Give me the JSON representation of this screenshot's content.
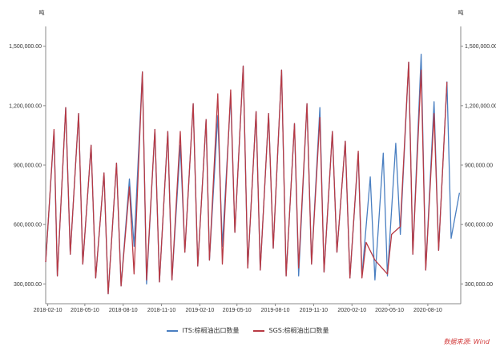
{
  "chart_data": {
    "type": "line",
    "unit_left": "吨",
    "unit_right": "吨",
    "ylim": [
      200000,
      1600000
    ],
    "yticks": [
      300000,
      600000,
      900000,
      1200000,
      1500000
    ],
    "ytick_labels": [
      "300,000.00",
      "600,000.00",
      "900,000.00",
      "1,200,000.00",
      "1,500,000.00"
    ],
    "x_range": [
      "2018-02-05",
      "2020-10-28"
    ],
    "x_tick_dates": [
      "2018-02-10",
      "2018-05-10",
      "2018-08-10",
      "2018-11-10",
      "2019-02-10",
      "2019-05-10",
      "2019-08-10",
      "2019-11-10",
      "2020-02-10",
      "2020-05-10",
      "2020-08-10"
    ],
    "x_tick_labels": [
      "2018-02-10",
      "2018-05-10",
      "2018-08-10",
      "2018-11-10",
      "2019-02-10",
      "2019-05-10",
      "2019-08-10",
      "2019-11-10",
      "2020-02-10",
      "2020-05-10",
      "2020-08-10"
    ],
    "grid": false,
    "legend_position": "bottom",
    "series": [
      {
        "name": "ITS:棕榈油出口数量",
        "color": "#4a7fc1",
        "points": [
          [
            "2018-02-05",
            410000
          ],
          [
            "2018-02-25",
            1070000
          ],
          [
            "2018-03-05",
            340000
          ],
          [
            "2018-03-25",
            1190000
          ],
          [
            "2018-04-05",
            450000
          ],
          [
            "2018-04-25",
            1160000
          ],
          [
            "2018-05-05",
            400000
          ],
          [
            "2018-05-25",
            1000000
          ],
          [
            "2018-06-05",
            330000
          ],
          [
            "2018-06-25",
            860000
          ],
          [
            "2018-07-05",
            250000
          ],
          [
            "2018-07-25",
            910000
          ],
          [
            "2018-08-05",
            290000
          ],
          [
            "2018-08-25",
            830000
          ],
          [
            "2018-09-05",
            490000
          ],
          [
            "2018-09-25",
            1370000
          ],
          [
            "2018-10-05",
            300000
          ],
          [
            "2018-10-25",
            1080000
          ],
          [
            "2018-11-05",
            310000
          ],
          [
            "2018-11-25",
            1070000
          ],
          [
            "2018-12-05",
            320000
          ],
          [
            "2018-12-25",
            1000000
          ],
          [
            "2019-01-05",
            460000
          ],
          [
            "2019-01-25",
            1210000
          ],
          [
            "2019-02-05",
            390000
          ],
          [
            "2019-02-25",
            1130000
          ],
          [
            "2019-03-05",
            420000
          ],
          [
            "2019-03-25",
            1150000
          ],
          [
            "2019-04-05",
            490000
          ],
          [
            "2019-04-25",
            1250000
          ],
          [
            "2019-05-05",
            560000
          ],
          [
            "2019-05-25",
            1400000
          ],
          [
            "2019-06-05",
            380000
          ],
          [
            "2019-06-25",
            1170000
          ],
          [
            "2019-07-05",
            370000
          ],
          [
            "2019-07-25",
            1160000
          ],
          [
            "2019-08-05",
            480000
          ],
          [
            "2019-08-25",
            1380000
          ],
          [
            "2019-09-05",
            340000
          ],
          [
            "2019-09-25",
            1110000
          ],
          [
            "2019-10-05",
            340000
          ],
          [
            "2019-10-25",
            1210000
          ],
          [
            "2019-11-05",
            400000
          ],
          [
            "2019-11-25",
            1190000
          ],
          [
            "2019-12-05",
            360000
          ],
          [
            "2019-12-25",
            1070000
          ],
          [
            "2020-01-05",
            460000
          ],
          [
            "2020-01-25",
            1020000
          ],
          [
            "2020-02-05",
            330000
          ],
          [
            "2020-02-25",
            960000
          ],
          [
            "2020-03-05",
            340000
          ],
          [
            "2020-03-25",
            840000
          ],
          [
            "2020-04-05",
            320000
          ],
          [
            "2020-04-25",
            960000
          ],
          [
            "2020-05-05",
            340000
          ],
          [
            "2020-05-25",
            1010000
          ],
          [
            "2020-06-05",
            550000
          ],
          [
            "2020-06-25",
            1420000
          ],
          [
            "2020-07-05",
            450000
          ],
          [
            "2020-07-25",
            1460000
          ],
          [
            "2020-08-05",
            370000
          ],
          [
            "2020-08-25",
            1220000
          ],
          [
            "2020-09-05",
            470000
          ],
          [
            "2020-09-25",
            1320000
          ],
          [
            "2020-10-05",
            530000
          ],
          [
            "2020-10-25",
            760000
          ]
        ]
      },
      {
        "name": "SGS:棕榈油出口数量",
        "color": "#b83a44",
        "points": [
          [
            "2018-02-05",
            410000
          ],
          [
            "2018-02-25",
            1080000
          ],
          [
            "2018-03-05",
            340000
          ],
          [
            "2018-03-25",
            1190000
          ],
          [
            "2018-04-05",
            450000
          ],
          [
            "2018-04-25",
            1160000
          ],
          [
            "2018-05-05",
            400000
          ],
          [
            "2018-05-25",
            1000000
          ],
          [
            "2018-06-05",
            330000
          ],
          [
            "2018-06-25",
            860000
          ],
          [
            "2018-07-05",
            250000
          ],
          [
            "2018-07-25",
            910000
          ],
          [
            "2018-08-05",
            290000
          ],
          [
            "2018-08-25",
            790000
          ],
          [
            "2018-09-05",
            350000
          ],
          [
            "2018-09-25",
            1370000
          ],
          [
            "2018-10-05",
            320000
          ],
          [
            "2018-10-25",
            1080000
          ],
          [
            "2018-11-05",
            310000
          ],
          [
            "2018-11-25",
            1070000
          ],
          [
            "2018-12-05",
            320000
          ],
          [
            "2018-12-25",
            1070000
          ],
          [
            "2019-01-05",
            460000
          ],
          [
            "2019-01-25",
            1210000
          ],
          [
            "2019-02-05",
            390000
          ],
          [
            "2019-02-25",
            1130000
          ],
          [
            "2019-03-05",
            420000
          ],
          [
            "2019-03-25",
            1260000
          ],
          [
            "2019-04-05",
            400000
          ],
          [
            "2019-04-25",
            1280000
          ],
          [
            "2019-05-05",
            560000
          ],
          [
            "2019-05-25",
            1400000
          ],
          [
            "2019-06-05",
            380000
          ],
          [
            "2019-06-25",
            1170000
          ],
          [
            "2019-07-05",
            370000
          ],
          [
            "2019-07-25",
            1160000
          ],
          [
            "2019-08-05",
            480000
          ],
          [
            "2019-08-25",
            1380000
          ],
          [
            "2019-09-05",
            340000
          ],
          [
            "2019-09-25",
            1110000
          ],
          [
            "2019-10-05",
            380000
          ],
          [
            "2019-10-25",
            1210000
          ],
          [
            "2019-11-05",
            400000
          ],
          [
            "2019-11-25",
            1140000
          ],
          [
            "2019-12-05",
            360000
          ],
          [
            "2019-12-25",
            1070000
          ],
          [
            "2020-01-05",
            460000
          ],
          [
            "2020-01-25",
            1020000
          ],
          [
            "2020-02-05",
            330000
          ],
          [
            "2020-02-25",
            970000
          ],
          [
            "2020-03-05",
            330000
          ],
          [
            "2020-03-15",
            510000
          ],
          [
            "2020-04-05",
            420000
          ],
          [
            "2020-05-05",
            350000
          ],
          [
            "2020-05-15",
            550000
          ],
          [
            "2020-06-05",
            590000
          ],
          [
            "2020-06-25",
            1420000
          ],
          [
            "2020-07-05",
            450000
          ],
          [
            "2020-07-25",
            1380000
          ],
          [
            "2020-08-05",
            370000
          ],
          [
            "2020-08-25",
            1160000
          ],
          [
            "2020-09-05",
            470000
          ],
          [
            "2020-09-25",
            1320000
          ]
        ]
      }
    ]
  },
  "source_label": "数据来源: Wind"
}
